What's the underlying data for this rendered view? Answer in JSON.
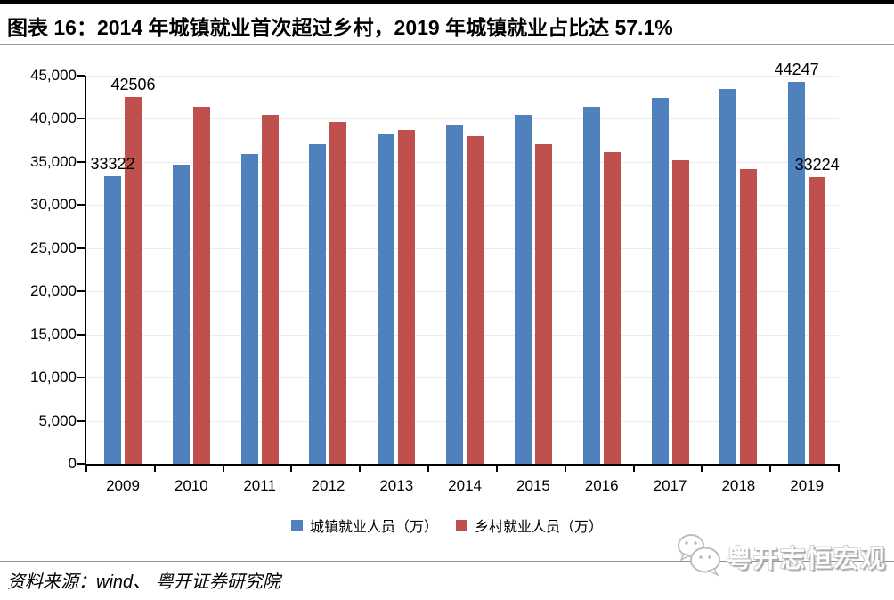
{
  "title": "图表 16：2014 年城镇就业首次超过乡村，2019 年城镇就业占比达 57.1%",
  "source_note": "资料来源：wind、 粤开证券研究院",
  "watermark": {
    "brand": "粤开志恒宏观",
    "icon": "wechat-icon"
  },
  "chart_data": {
    "type": "bar",
    "title": "2014 年城镇就业首次超过乡村，2019 年城镇就业占比达 57.1%",
    "categories": [
      "2009",
      "2010",
      "2011",
      "2012",
      "2013",
      "2014",
      "2015",
      "2016",
      "2017",
      "2018",
      "2019"
    ],
    "series": [
      {
        "key": "urban",
        "name": "城镇就业人员（万）",
        "color": "#4F81BD",
        "values": [
          33322,
          34687,
          35914,
          37102,
          38240,
          39310,
          40410,
          41428,
          42462,
          43419,
          44247
        ]
      },
      {
        "key": "rural",
        "name": "乡村就业人员（万）",
        "color": "#C0504D",
        "values": [
          42506,
          41418,
          40506,
          39602,
          38737,
          37943,
          37041,
          36175,
          35178,
          34167,
          33224
        ]
      }
    ],
    "xlabel": "",
    "ylabel": "",
    "ylim": [
      0,
      45000
    ],
    "ytick_step": 5000,
    "ytick_labels": [
      "0",
      "5,000",
      "10,000",
      "15,000",
      "20,000",
      "25,000",
      "30,000",
      "35,000",
      "40,000",
      "45,000"
    ],
    "grid": "faint-horizontal",
    "legend_position": "bottom",
    "point_labels": [
      {
        "category": "2009",
        "series": 0,
        "text": "33322"
      },
      {
        "category": "2009",
        "series": 1,
        "text": "42506"
      },
      {
        "category": "2019",
        "series": 0,
        "text": "44247"
      },
      {
        "category": "2019",
        "series": 1,
        "text": "33224"
      }
    ]
  }
}
